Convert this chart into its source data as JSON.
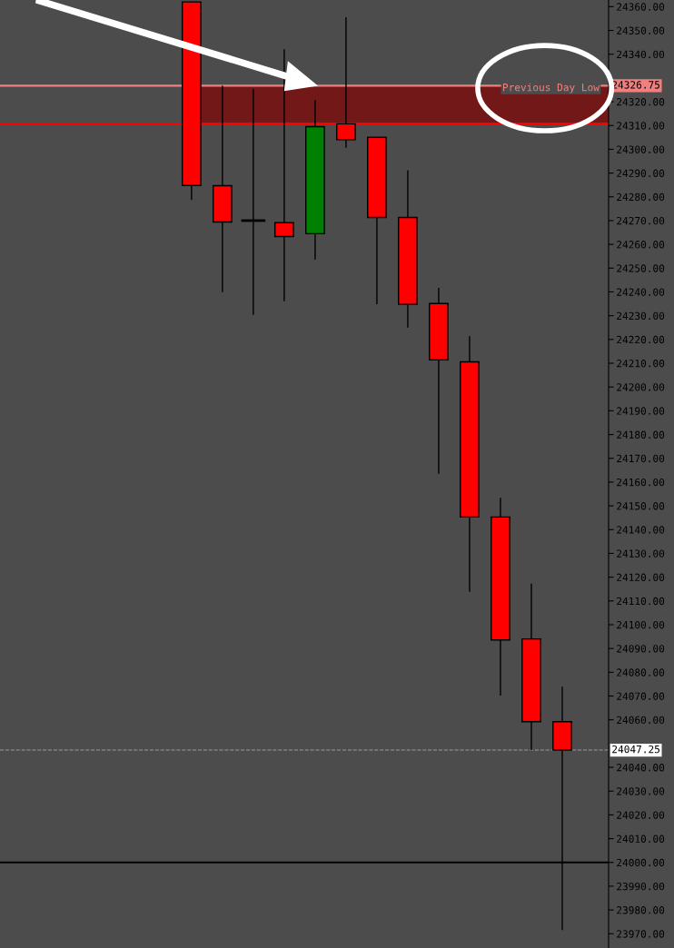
{
  "chart_data": {
    "type": "candlestick",
    "categories": [
      null,
      null,
      null,
      null,
      null,
      null,
      null,
      null,
      null,
      null,
      null,
      null,
      null
    ],
    "ohlc": [
      [
        24362,
        24362,
        24278.7,
        24284.8
      ],
      [
        24284.7,
        24326.8,
        24239.9,
        24269.4
      ],
      [
        24270,
        24325.4,
        24230.3,
        24270
      ],
      [
        24269.1,
        24342.1,
        24236.1,
        24263.3
      ],
      [
        24264.5,
        24320.7,
        24253.6,
        24309.5
      ],
      [
        24310.7,
        24355.5,
        24300.6,
        24304
      ],
      [
        24305,
        24305,
        24234.8,
        24271.3
      ],
      [
        24271.3,
        24291.2,
        24225,
        24234.8
      ],
      [
        24235.1,
        24241.7,
        24163.5,
        24211.4
      ],
      [
        24210.6,
        24221.4,
        24113.8,
        24145.3
      ],
      [
        24145.3,
        24153.4,
        24070.2,
        24093.6
      ],
      [
        24094,
        24117.3,
        24047.2,
        24059.2
      ],
      [
        24059.2,
        24073.9,
        23971.5,
        24047.25
      ]
    ],
    "colors": [
      "#ff0000",
      "#ff0000",
      "#000000",
      "#ff0000",
      "#008000",
      "#ff0000",
      "#ff0000",
      "#ff0000",
      "#ff0000",
      "#ff0000",
      "#ff0000",
      "#ff0000",
      "#ff0000"
    ],
    "ylim": [
      23964,
      24362.8
    ],
    "yticks": [
      {
        "value": 23970,
        "label": "23970.00"
      },
      {
        "value": 23980,
        "label": "23980.00"
      },
      {
        "value": 23990,
        "label": "23990.00"
      },
      {
        "value": 24000,
        "label": "24000.00"
      },
      {
        "value": 24010,
        "label": "24010.00"
      },
      {
        "value": 24020,
        "label": "24020.00"
      },
      {
        "value": 24030,
        "label": "24030.00"
      },
      {
        "value": 24040,
        "label": "24040.00"
      },
      {
        "value": 24060,
        "label": "24060.00"
      },
      {
        "value": 24070,
        "label": "24070.00"
      },
      {
        "value": 24080,
        "label": "24080.00"
      },
      {
        "value": 24090,
        "label": "24090.00"
      },
      {
        "value": 24100,
        "label": "24100.00"
      },
      {
        "value": 24110,
        "label": "24110.00"
      },
      {
        "value": 24120,
        "label": "24120.00"
      },
      {
        "value": 24130,
        "label": "24130.00"
      },
      {
        "value": 24140,
        "label": "24140.00"
      },
      {
        "value": 24150,
        "label": "24150.00"
      },
      {
        "value": 24160,
        "label": "24160.00"
      },
      {
        "value": 24170,
        "label": "24170.00"
      },
      {
        "value": 24180,
        "label": "24180.00"
      },
      {
        "value": 24190,
        "label": "24190.00"
      },
      {
        "value": 24200,
        "label": "24200.00"
      },
      {
        "value": 24210,
        "label": "24210.00"
      },
      {
        "value": 24220,
        "label": "24220.00"
      },
      {
        "value": 24230,
        "label": "24230.00"
      },
      {
        "value": 24240,
        "label": "24240.00"
      },
      {
        "value": 24250,
        "label": "24250.00"
      },
      {
        "value": 24260,
        "label": "24260.00"
      },
      {
        "value": 24270,
        "label": "24270.00"
      },
      {
        "value": 24280,
        "label": "24280.00"
      },
      {
        "value": 24290,
        "label": "24290.00"
      },
      {
        "value": 24300,
        "label": "24300.00"
      },
      {
        "value": 24310,
        "label": "24310.00"
      },
      {
        "value": 24320,
        "label": "24320.00"
      },
      {
        "value": 24340,
        "label": "24340.00"
      },
      {
        "value": 24350,
        "label": "24350.00"
      },
      {
        "value": 24360,
        "label": "24360.00"
      }
    ],
    "ref_lines": [
      {
        "axis": "y",
        "value": 24326.75,
        "label": "24326.75",
        "color": "#f08080"
      },
      {
        "axis": "y",
        "value": 24310.8,
        "color": "#ff0000"
      },
      {
        "axis": "y",
        "value": 24000,
        "color": "#000000"
      },
      {
        "axis": "y",
        "value": 24047.25,
        "label": "24047.25",
        "color": "#999999",
        "line_style": "dashed"
      }
    ],
    "bands": [
      {
        "axis": "y",
        "from": 24310.8,
        "to": 24326.75,
        "color": "#731818"
      }
    ],
    "annotations": [
      "Previous Day Low"
    ],
    "grid": false,
    "legend": false
  }
}
